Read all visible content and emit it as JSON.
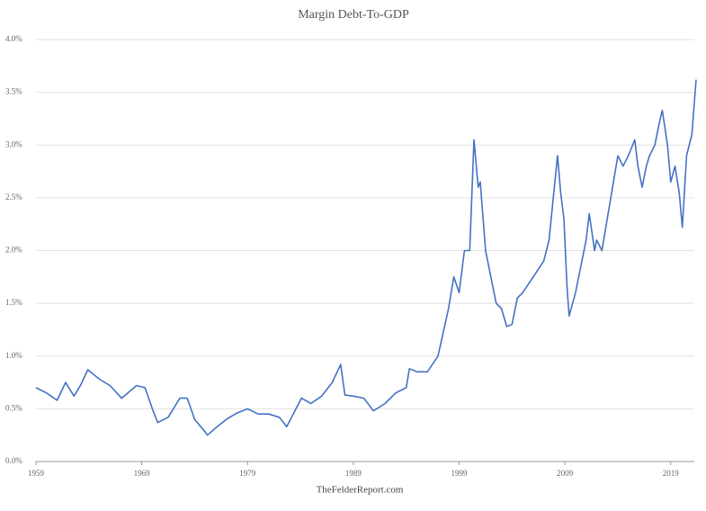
{
  "chart_data": {
    "type": "line",
    "title": "Margin Debt-To-GDP",
    "source": "TheFelderReport.com",
    "x": [
      1959,
      1960,
      1961,
      1961.8,
      1962.6,
      1963.2,
      1963.9,
      1965,
      1966,
      1967.1,
      1968.5,
      1969.3,
      1970,
      1970.5,
      1971.5,
      1972.6,
      1973.3,
      1974,
      1975,
      1975.2,
      1976,
      1977,
      1978,
      1979,
      1980,
      1981,
      1982,
      1982.7,
      1984.1,
      1985,
      1986,
      1987,
      1987.8,
      1988.2,
      1989,
      1990,
      1990.9,
      1992,
      1993,
      1994,
      1994.3,
      1995,
      1996,
      1997,
      1998,
      1998.5,
      1999,
      1999.5,
      2000,
      2000.4,
      2000.8,
      2001,
      2001.5,
      2002,
      2002.5,
      2003,
      2003.5,
      2004,
      2004.5,
      2005,
      2006,
      2007,
      2007.5,
      2008.3,
      2008.6,
      2008.9,
      2009.2,
      2009.4,
      2010,
      2010.5,
      2011,
      2011.3,
      2011.8,
      2012,
      2012.5,
      2013,
      2013.5,
      2014,
      2014.5,
      2015,
      2015.6,
      2015.9,
      2016.3,
      2016.7,
      2017,
      2017.5,
      2017.9,
      2018.2,
      2018.7,
      2019,
      2019.4,
      2019.8,
      2020.1,
      2020.5,
      2021,
      2021.4
    ],
    "values": [
      0.7,
      0.65,
      0.58,
      0.75,
      0.62,
      0.72,
      0.87,
      0.78,
      0.72,
      0.6,
      0.72,
      0.7,
      0.5,
      0.37,
      0.42,
      0.6,
      0.6,
      0.4,
      0.28,
      0.25,
      0.32,
      0.4,
      0.46,
      0.5,
      0.45,
      0.45,
      0.42,
      0.33,
      0.6,
      0.55,
      0.62,
      0.75,
      0.92,
      0.63,
      0.62,
      0.6,
      0.48,
      0.55,
      0.65,
      0.7,
      0.88,
      0.85,
      0.85,
      1.0,
      1.45,
      1.75,
      1.6,
      2.0,
      2.0,
      3.05,
      2.6,
      2.65,
      2.0,
      1.75,
      1.5,
      1.45,
      1.28,
      1.3,
      1.55,
      1.6,
      1.75,
      1.9,
      2.1,
      2.9,
      2.55,
      2.3,
      1.65,
      1.38,
      1.6,
      1.85,
      2.1,
      2.35,
      2.0,
      2.1,
      2.0,
      2.3,
      2.6,
      2.9,
      2.8,
      2.9,
      3.05,
      2.8,
      2.6,
      2.8,
      2.9,
      3.0,
      3.2,
      3.33,
      3.0,
      2.65,
      2.8,
      2.55,
      2.22,
      2.9,
      3.1,
      3.62
    ],
    "color": "#4472c4",
    "xlim": [
      1959,
      2021.4
    ],
    "xticks": [
      1959,
      1969,
      1979,
      1989,
      1999,
      2009,
      2019
    ],
    "ylim": [
      0,
      4
    ],
    "yticks": [
      {
        "value": 0,
        "label": "0.0%"
      },
      {
        "value": 0.5,
        "label": "0.5%"
      },
      {
        "value": 1,
        "label": "1.0%"
      },
      {
        "value": 1.5,
        "label": "1.5%"
      },
      {
        "value": 2,
        "label": "2.0%"
      },
      {
        "value": 2.5,
        "label": "2.5%"
      },
      {
        "value": 3,
        "label": "3.0%"
      },
      {
        "value": 3.5,
        "label": "3.5%"
      },
      {
        "value": 4,
        "label": "4.0%"
      }
    ],
    "grid": true
  }
}
